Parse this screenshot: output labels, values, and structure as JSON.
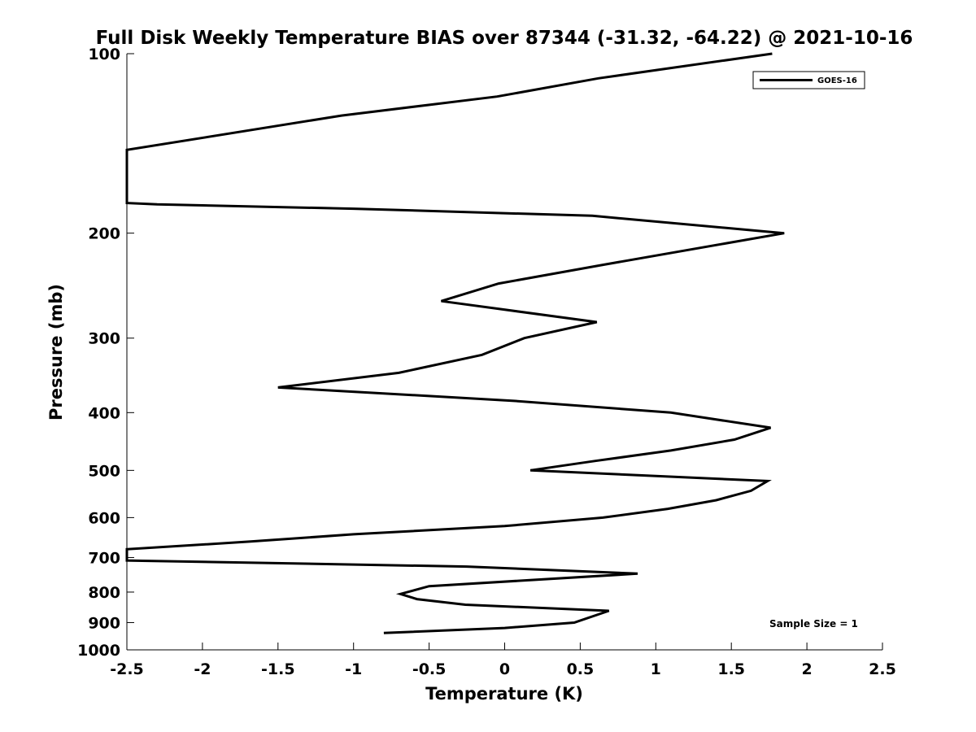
{
  "chart_data": {
    "type": "line",
    "title": "Full Disk Weekly Temperature BIAS over 87344 (-31.32, -64.22) @ 2021-10-16",
    "xlabel": "Temperature (K)",
    "ylabel": "Pressure (mb)",
    "xlim": [
      -2.5,
      2.5
    ],
    "ylim": [
      1000,
      100
    ],
    "y_scale": "log",
    "x_ticks": [
      -2.5,
      -2,
      -1.5,
      -1,
      -0.5,
      0,
      0.5,
      1,
      1.5,
      2,
      2.5
    ],
    "x_tick_labels": [
      "-2.5",
      "-2",
      "-1.5",
      "-1",
      "-0.5",
      "0",
      "0.5",
      "1",
      "1.5",
      "2",
      "2.5"
    ],
    "y_ticks": [
      100,
      200,
      300,
      400,
      500,
      600,
      700,
      800,
      900,
      1000
    ],
    "y_tick_labels": [
      "100",
      "200",
      "300",
      "400",
      "500",
      "600",
      "700",
      "800",
      "900",
      "1000"
    ],
    "legend": {
      "location": "top-right",
      "entries": [
        "GOES-16"
      ]
    },
    "annotation": "Sample Size = 1",
    "series": [
      {
        "name": "GOES-16",
        "color": "#000000",
        "points": [
          {
            "t": 1.77,
            "p": 100
          },
          {
            "t": 0.62,
            "p": 110
          },
          {
            "t": -0.05,
            "p": 118
          },
          {
            "t": -1.08,
            "p": 127
          },
          {
            "t": -2.5,
            "p": 145
          },
          {
            "t": -2.5,
            "p": 178
          },
          {
            "t": -2.3,
            "p": 179
          },
          {
            "t": -1.0,
            "p": 182
          },
          {
            "t": 0.58,
            "p": 187
          },
          {
            "t": 1.85,
            "p": 200
          },
          {
            "t": 0.65,
            "p": 226
          },
          {
            "t": -0.04,
            "p": 243
          },
          {
            "t": -0.42,
            "p": 260
          },
          {
            "t": 0.61,
            "p": 282
          },
          {
            "t": 0.13,
            "p": 300
          },
          {
            "t": -0.15,
            "p": 320
          },
          {
            "t": -0.7,
            "p": 343
          },
          {
            "t": -1.5,
            "p": 363
          },
          {
            "t": 0.05,
            "p": 382
          },
          {
            "t": 1.1,
            "p": 400
          },
          {
            "t": 1.76,
            "p": 424
          },
          {
            "t": 1.52,
            "p": 444
          },
          {
            "t": 1.1,
            "p": 463
          },
          {
            "t": 0.6,
            "p": 482
          },
          {
            "t": 0.17,
            "p": 500
          },
          {
            "t": 1.74,
            "p": 521
          },
          {
            "t": 1.63,
            "p": 541
          },
          {
            "t": 1.4,
            "p": 561
          },
          {
            "t": 1.08,
            "p": 580
          },
          {
            "t": 0.65,
            "p": 600
          },
          {
            "t": 0.0,
            "p": 620
          },
          {
            "t": -1.0,
            "p": 640
          },
          {
            "t": -1.68,
            "p": 658
          },
          {
            "t": -2.5,
            "p": 678
          },
          {
            "t": -2.5,
            "p": 708
          },
          {
            "t": -2.4,
            "p": 709
          },
          {
            "t": -0.25,
            "p": 725
          },
          {
            "t": 0.88,
            "p": 745
          },
          {
            "t": -0.5,
            "p": 782
          },
          {
            "t": -0.69,
            "p": 806
          },
          {
            "t": -0.58,
            "p": 822
          },
          {
            "t": -0.26,
            "p": 840
          },
          {
            "t": 0.69,
            "p": 860
          },
          {
            "t": 0.46,
            "p": 900
          },
          {
            "t": 0.0,
            "p": 919
          },
          {
            "t": -0.8,
            "p": 937
          }
        ]
      }
    ]
  }
}
